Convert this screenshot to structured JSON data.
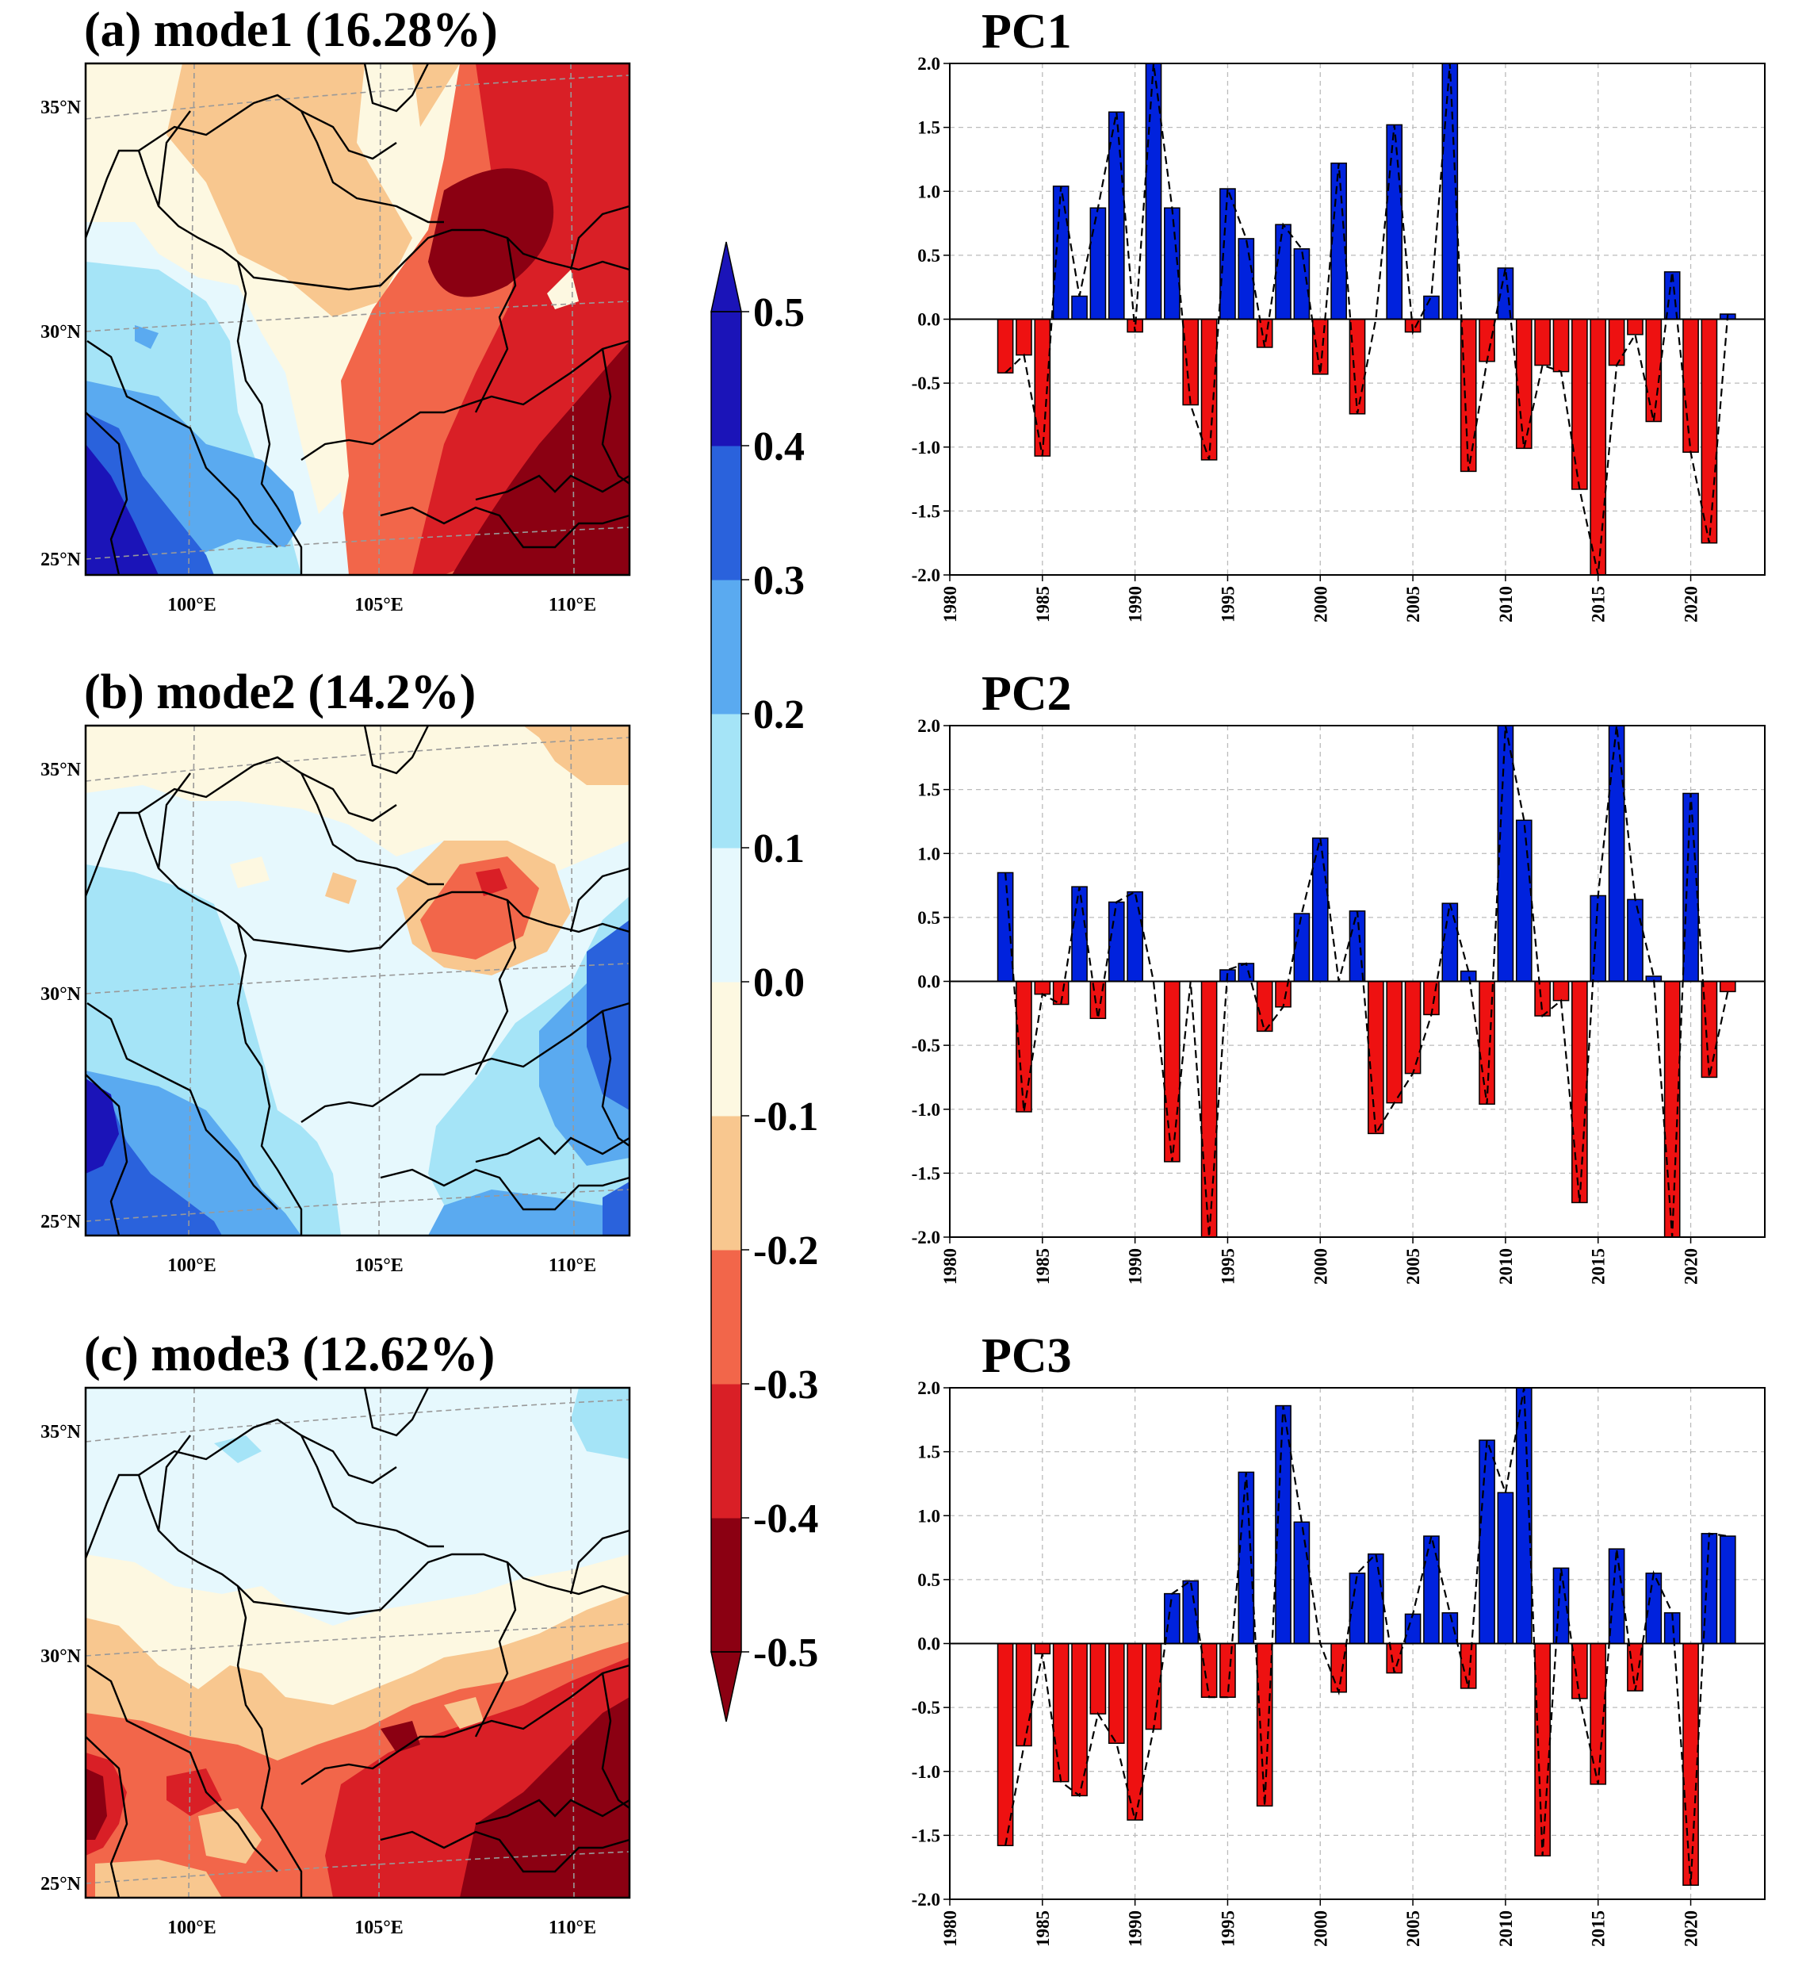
{
  "colors": {
    "palette": [
      "#8b0012",
      "#d91f26",
      "#f2664a",
      "#f8c78f",
      "#fdf8e1",
      "#e6f8fd",
      "#a5e4f7",
      "#5aaaf0",
      "#2a62dc",
      "#1b14b8"
    ],
    "positive_bar": "#0022dd",
    "negative_bar": "#ee1111"
  },
  "maps": [
    {
      "title": "(a) mode1 (16.28%)",
      "lat_labels": [
        "35°N",
        "30°N",
        "25°N"
      ],
      "lon_labels": [
        "100°E",
        "105°E",
        "110°E"
      ]
    },
    {
      "title": "(b) mode2 (14.2%)",
      "lat_labels": [
        "35°N",
        "30°N",
        "25°N"
      ],
      "lon_labels": [
        "100°E",
        "105°E",
        "110°E"
      ]
    },
    {
      "title": "(c) mode3 (12.62%)",
      "lat_labels": [
        "35°N",
        "30°N",
        "25°N"
      ],
      "lon_labels": [
        "100°E",
        "105°E",
        "110°E"
      ]
    }
  ],
  "colorbar": {
    "ticks": [
      "0.5",
      "0.4",
      "0.3",
      "0.2",
      "0.1",
      "0.0",
      "-0.1",
      "-0.2",
      "-0.3",
      "-0.4",
      "-0.5"
    ]
  },
  "chart_data": [
    {
      "type": "bar",
      "title": "PC1",
      "x": [
        1983,
        1984,
        1985,
        1986,
        1987,
        1988,
        1989,
        1990,
        1991,
        1992,
        1993,
        1994,
        1995,
        1996,
        1997,
        1998,
        1999,
        2000,
        2001,
        2002,
        2003,
        2004,
        2005,
        2006,
        2007,
        2008,
        2009,
        2010,
        2011,
        2012,
        2013,
        2014,
        2015,
        2016,
        2017,
        2018,
        2019,
        2020,
        2021,
        2022
      ],
      "values": [
        -0.42,
        -0.28,
        -1.07,
        1.04,
        0.18,
        0.87,
        1.62,
        -0.1,
        2.0,
        0.87,
        -0.67,
        -1.1,
        1.02,
        0.63,
        -0.22,
        0.74,
        0.55,
        -0.43,
        1.22,
        -0.74,
        0.0,
        1.52,
        -0.1,
        0.18,
        2.0,
        -1.19,
        -0.33,
        0.4,
        -1.01,
        -0.36,
        -0.41,
        -1.33,
        -2.0,
        -0.36,
        -0.12,
        -0.8,
        0.37,
        -1.04,
        -1.75,
        0.04
      ],
      "xlim": [
        1980,
        2024
      ],
      "ylim": [
        -2.0,
        2.0
      ],
      "xticks": [
        "1980",
        "1985",
        "1990",
        "1995",
        "2000",
        "2005",
        "2010",
        "2015",
        "2020"
      ],
      "yticks": [
        "2.0",
        "1.5",
        "1.0",
        "0.5",
        "0.0",
        "-0.5",
        "-1.0",
        "-1.5",
        "-2.0"
      ],
      "grid": true
    },
    {
      "type": "bar",
      "title": "PC2",
      "x": [
        1983,
        1984,
        1985,
        1986,
        1987,
        1988,
        1989,
        1990,
        1991,
        1992,
        1993,
        1994,
        1995,
        1996,
        1997,
        1998,
        1999,
        2000,
        2001,
        2002,
        2003,
        2004,
        2005,
        2006,
        2007,
        2008,
        2009,
        2010,
        2011,
        2012,
        2013,
        2014,
        2015,
        2016,
        2017,
        2018,
        2019,
        2020,
        2021,
        2022
      ],
      "values": [
        0.85,
        -1.02,
        -0.1,
        -0.18,
        0.74,
        -0.29,
        0.62,
        0.7,
        0.0,
        -1.41,
        0.0,
        -2.0,
        0.09,
        0.14,
        -0.39,
        -0.2,
        0.53,
        1.12,
        0.0,
        0.55,
        -1.19,
        -0.95,
        -0.72,
        -0.26,
        0.61,
        0.08,
        -0.96,
        2.0,
        1.26,
        -0.27,
        -0.15,
        -1.73,
        0.67,
        2.0,
        0.64,
        0.04,
        -2.0,
        1.47,
        -0.75,
        -0.08
      ],
      "xlim": [
        1980,
        2024
      ],
      "ylim": [
        -2.0,
        2.0
      ],
      "xticks": [
        "1980",
        "1985",
        "1990",
        "1995",
        "2000",
        "2005",
        "2010",
        "2015",
        "2020"
      ],
      "yticks": [
        "2.0",
        "1.5",
        "1.0",
        "0.5",
        "0.0",
        "-0.5",
        "-1.0",
        "-1.5",
        "-2.0"
      ],
      "grid": true
    },
    {
      "type": "bar",
      "title": "PC3",
      "x": [
        1983,
        1984,
        1985,
        1986,
        1987,
        1988,
        1989,
        1990,
        1991,
        1992,
        1993,
        1994,
        1995,
        1996,
        1997,
        1998,
        1999,
        2000,
        2001,
        2002,
        2003,
        2004,
        2005,
        2006,
        2007,
        2008,
        2009,
        2010,
        2011,
        2012,
        2013,
        2014,
        2015,
        2016,
        2017,
        2018,
        2019,
        2020,
        2021,
        2022
      ],
      "values": [
        -1.58,
        -0.8,
        -0.08,
        -1.08,
        -1.19,
        -0.55,
        -0.78,
        -1.38,
        -0.67,
        0.39,
        0.49,
        -0.42,
        -0.42,
        1.34,
        -1.27,
        1.86,
        0.95,
        0.0,
        -0.38,
        0.55,
        0.7,
        -0.23,
        0.23,
        0.84,
        0.24,
        -0.35,
        1.59,
        1.18,
        2.0,
        -1.66,
        0.59,
        -0.43,
        -1.1,
        0.74,
        -0.37,
        0.55,
        0.24,
        -1.89,
        0.86,
        0.84
      ],
      "xlim": [
        1980,
        2024
      ],
      "ylim": [
        -2.0,
        2.0
      ],
      "xticks": [
        "1980",
        "1985",
        "1990",
        "1995",
        "2000",
        "2005",
        "2010",
        "2015",
        "2020"
      ],
      "yticks": [
        "2.0",
        "1.5",
        "1.0",
        "0.5",
        "0.0",
        "-0.5",
        "-1.0",
        "-1.5",
        "-2.0"
      ],
      "grid": true
    }
  ]
}
